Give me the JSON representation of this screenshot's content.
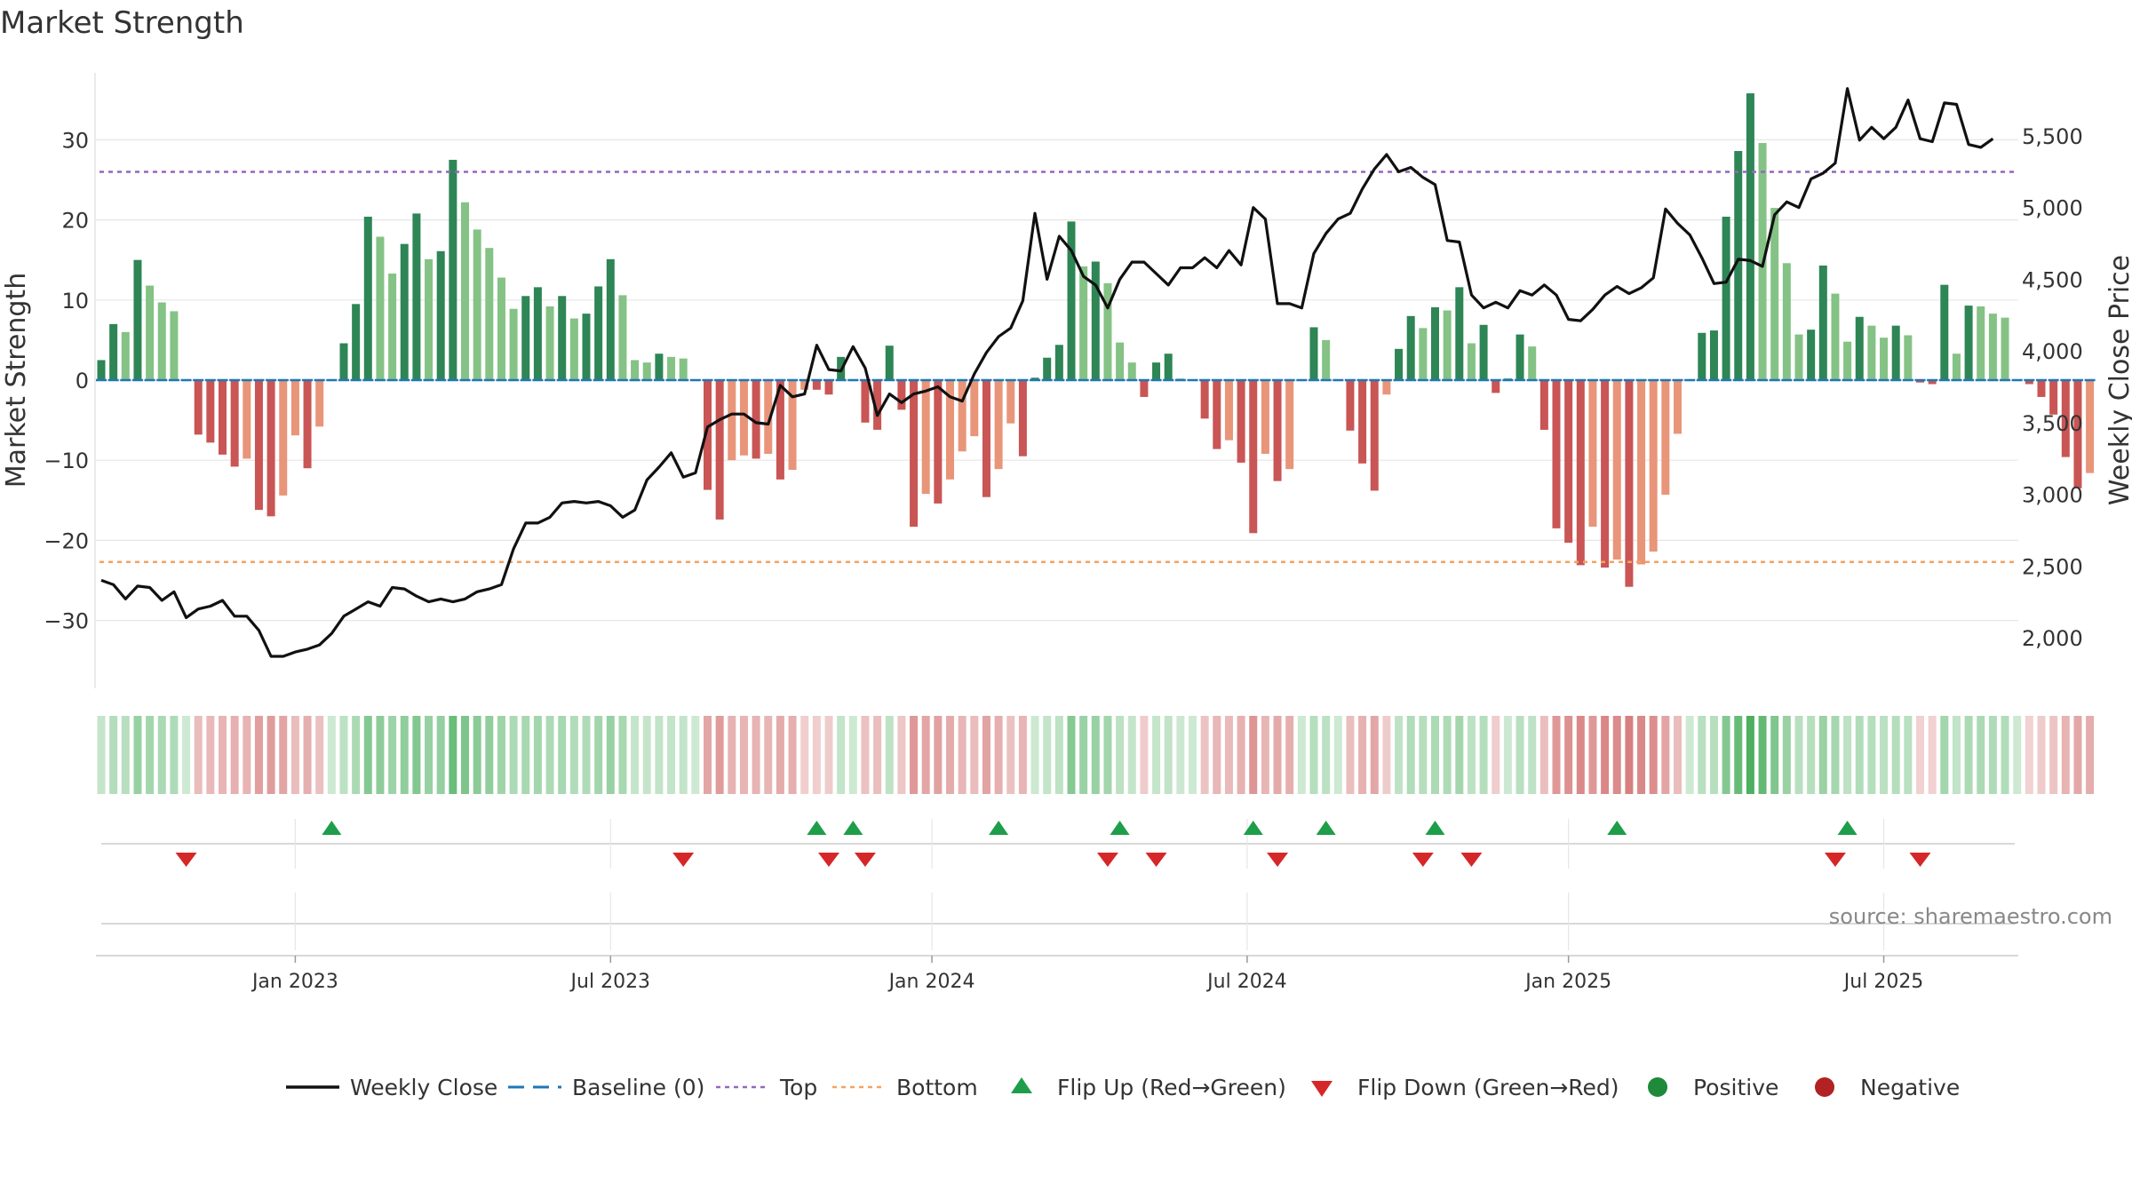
{
  "chart_data": {
    "type": "bar",
    "title": "Market Strength",
    "ylabel": "Market Strength",
    "y2label": "Weekly Close Price",
    "ylim": [
      -39,
      39
    ],
    "y2lim": [
      1600,
      6000
    ],
    "yticks": [
      30,
      20,
      10,
      0,
      -10,
      -20,
      -30
    ],
    "ytick_labels": [
      "30",
      "20",
      "10",
      "0",
      "−10",
      "−20",
      "−30"
    ],
    "y2ticks": [
      5500,
      5000,
      4500,
      4000,
      3500,
      3000,
      2500,
      2000
    ],
    "y2tick_labels": [
      "5,500",
      "5,000",
      "4,500",
      "4,000",
      "3,500",
      "3,000",
      "2,500",
      "2,000"
    ],
    "x_ticks": [
      {
        "label": "Jan 2023",
        "week": 16
      },
      {
        "label": "Jul 2023",
        "week": 42
      },
      {
        "label": "Jan 2024",
        "week": 68.5
      },
      {
        "label": "Jul 2024",
        "week": 94.5
      },
      {
        "label": "Jan 2025",
        "week": 121
      },
      {
        "label": "Jul 2025",
        "week": 147
      }
    ],
    "top_line": 26,
    "bottom_line": -22.7,
    "strength": [
      2.5,
      7,
      6,
      15,
      11.8,
      9.7,
      8.6,
      0,
      -6.8,
      -7.8,
      -9.3,
      -10.8,
      -9.8,
      -16.2,
      -17,
      -14.4,
      -6.9,
      -11,
      -5.8,
      0,
      4.6,
      9.5,
      20.4,
      17.9,
      13.3,
      17,
      20.8,
      15.1,
      16.1,
      27.5,
      22.2,
      18.8,
      16.5,
      12.8,
      8.9,
      10.5,
      11.6,
      9.2,
      10.5,
      7.7,
      8.3,
      11.7,
      15.1,
      10.6,
      2.5,
      2.2,
      3.3,
      2.9,
      2.7,
      0,
      -13.7,
      -17.4,
      -10,
      -9.4,
      -9.8,
      -9.2,
      -12.4,
      -11.2,
      -1.2,
      -1.2,
      -1.8,
      2.9,
      0,
      -5.3,
      -6.2,
      4.3,
      -3.7,
      -18.3,
      -14.2,
      -15.4,
      -12.4,
      -8.9,
      -7,
      -14.6,
      -11.1,
      -5.4,
      -9.5,
      0.3,
      2.8,
      4.4,
      19.8,
      14.2,
      14.8,
      12.1,
      4.7,
      2.2,
      -2.1,
      2.2,
      3.3,
      0.2,
      0,
      -4.8,
      -8.6,
      -7.5,
      -10.3,
      -19.1,
      -9.2,
      -12.6,
      -11.1,
      0,
      6.6,
      5,
      0,
      -6.3,
      -10.4,
      -13.8,
      -1.8,
      3.9,
      8,
      6.5,
      9.1,
      8.7,
      11.6,
      4.6,
      6.9,
      -1.6,
      0.2,
      5.7,
      4.2,
      -6.2,
      -18.5,
      -20.3,
      -23.1,
      -18.3,
      -23.4,
      -22.4,
      -25.8,
      -23,
      -21.4,
      -14.3,
      -6.7,
      0,
      5.9,
      6.2,
      20.4,
      28.6,
      35.8,
      29.6,
      21.5,
      14.6,
      5.7,
      6.3,
      14.3,
      10.8,
      4.8,
      7.9,
      6.8,
      5.3,
      6.8,
      5.6,
      -0.3,
      -0.5,
      11.9,
      3.3,
      9.3,
      9.2,
      8.3,
      7.8,
      0,
      -0.5,
      -2.1,
      -4.3,
      -9.6,
      -13.5,
      -11.6
    ],
    "weekly_close": [
      2400,
      2370,
      2270,
      2360,
      2350,
      2260,
      2320,
      2140,
      2200,
      2220,
      2260,
      2150,
      2150,
      2050,
      1870,
      1870,
      1900,
      1920,
      1950,
      2030,
      2150,
      2200,
      2250,
      2220,
      2350,
      2340,
      2290,
      2250,
      2270,
      2250,
      2270,
      2320,
      2340,
      2370,
      2620,
      2800,
      2800,
      2840,
      2940,
      2950,
      2940,
      2950,
      2920,
      2840,
      2890,
      3100,
      3190,
      3290,
      3120,
      3150,
      3470,
      3520,
      3560,
      3560,
      3500,
      3490,
      3760,
      3680,
      3700,
      4040,
      3870,
      3860,
      4030,
      3880,
      3550,
      3700,
      3640,
      3700,
      3720,
      3750,
      3680,
      3650,
      3840,
      3990,
      4100,
      4160,
      4350,
      4960,
      4500,
      4800,
      4700,
      4520,
      4460,
      4300,
      4500,
      4620,
      4620,
      4540,
      4460,
      4580,
      4580,
      4650,
      4580,
      4700,
      4600,
      5000,
      4920,
      4330,
      4330,
      4300,
      4680,
      4820,
      4920,
      4960,
      5130,
      5270,
      5370,
      5250,
      5280,
      5210,
      5160,
      4770,
      4760,
      4390,
      4300,
      4340,
      4300,
      4420,
      4390,
      4460,
      4390,
      4220,
      4210,
      4290,
      4390,
      4450,
      4400,
      4440,
      4510,
      4990,
      4890,
      4810,
      4650,
      4470,
      4480,
      4640,
      4630,
      4590,
      4950,
      5040,
      5000,
      5200,
      5240,
      5310,
      5830,
      5470,
      5560,
      5480,
      5560,
      5750,
      5480,
      5460,
      5730,
      5720,
      5440,
      5420,
      5480
    ],
    "flip_up_weeks": [
      19,
      59,
      62,
      74,
      84,
      95,
      101,
      110,
      125,
      144
    ],
    "flip_down_weeks": [
      7,
      48,
      60,
      63,
      83,
      87,
      97,
      109,
      113,
      143,
      150
    ],
    "source": "source: sharemaestro.com",
    "legend": [
      {
        "label": "Weekly Close",
        "marker": "solid-line",
        "color": "#111111"
      },
      {
        "label": "Baseline (0)",
        "marker": "dashed-line",
        "color": "#1f77b4"
      },
      {
        "label": "Top",
        "marker": "dotted-line",
        "color": "#9467bd"
      },
      {
        "label": "Bottom",
        "marker": "dotted-line",
        "color": "#f4a261"
      },
      {
        "label": "Flip Up (Red→Green)",
        "marker": "triangle-up",
        "color": "#1e9e4a"
      },
      {
        "label": "Flip Down (Green→Red)",
        "marker": "triangle-down",
        "color": "#d62728"
      },
      {
        "label": "Positive",
        "marker": "circle",
        "color": "#1e8a3a"
      },
      {
        "label": "Negative",
        "marker": "circle",
        "color": "#b22222"
      }
    ],
    "colors": {
      "strong_green": "#2e8555",
      "light_green": "#85c285",
      "strong_red": "#c95555",
      "light_red": "#e8957a",
      "top_line": "#9467bd",
      "bottom_line": "#f4a261",
      "baseline": "#1f77b4",
      "price_line": "#111111"
    }
  }
}
